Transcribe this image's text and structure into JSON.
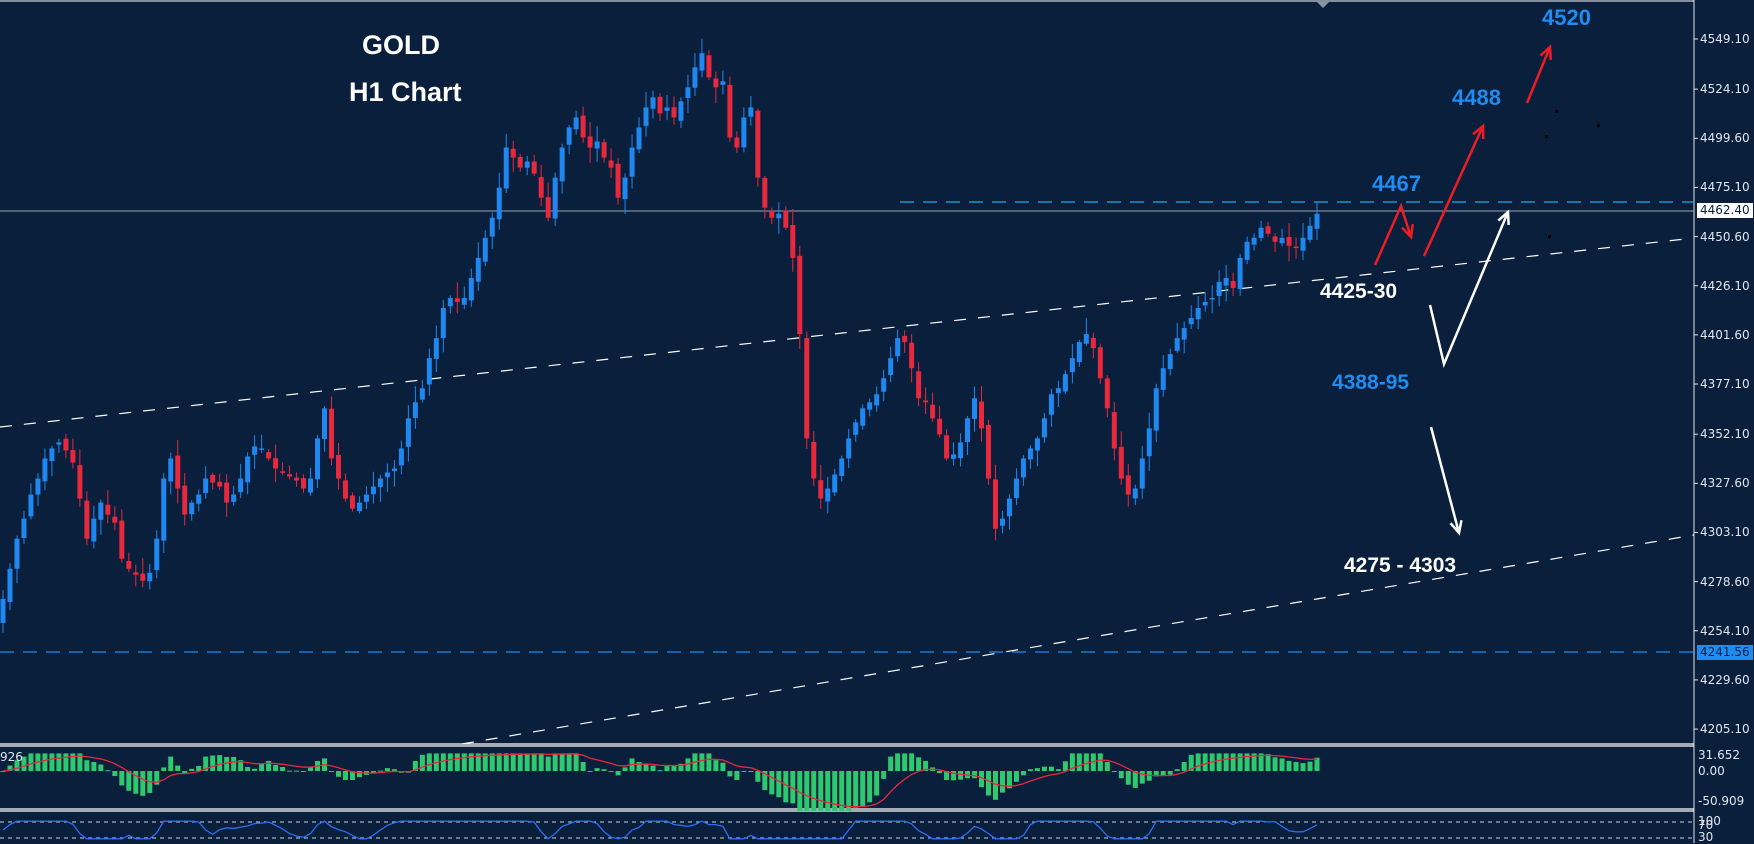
{
  "title": {
    "line1": "GOLD",
    "line2": "H1 Chart"
  },
  "colors": {
    "background": "#0a1f3c",
    "bull": "#1e88f0",
    "bear": "#e8283c",
    "macd_hist": "#2ec86e",
    "macd_signal": "#e8283c",
    "rsi_line": "#2a6ef0",
    "resistance_line": "#1eaaf0",
    "support_line": "#1e8cf0",
    "trendline": "#ffffff",
    "current_price_line": "#9aa4b0"
  },
  "price_axis": {
    "ticks": [
      "4549.10",
      "4524.10",
      "4499.60",
      "4475.10",
      "4450.60",
      "4426.10",
      "4401.60",
      "4377.10",
      "4352.10",
      "4327.60",
      "4303.10",
      "4278.60",
      "4254.10",
      "4229.60",
      "4205.10"
    ],
    "current_price_tag": "4462.40",
    "support_tag": "4241.56"
  },
  "macd_axis": {
    "ticks": [
      "31.652",
      "0.00",
      "-50.909"
    ],
    "left_value": "926"
  },
  "rsi_axis": {
    "ticks": [
      "100",
      "70",
      "30"
    ]
  },
  "annotations": {
    "target_4520": "4520",
    "target_4488": "4488",
    "resistance_4467": "4467",
    "support_4425": "4425-30",
    "support_4388": "4388-95",
    "support_4275": "4275 - 4303"
  },
  "chart_data": {
    "type": "candlestick",
    "title": "GOLD H1 Chart",
    "symbol": "GOLD",
    "timeframe": "H1",
    "ylim": [
      4195,
      4560
    ],
    "grid": false,
    "horizontal_levels": [
      {
        "value": 4467,
        "label": "4467",
        "style": "dashed",
        "color": "#1eaaf0"
      },
      {
        "value": 4462.4,
        "label": "4462.40",
        "style": "solid",
        "color": "#9aa4b0"
      },
      {
        "value": 4241.56,
        "label": "4241.56",
        "style": "dashed",
        "color": "#1e8cf0"
      }
    ],
    "trendlines": [
      {
        "name": "upper-channel",
        "from": [
          0,
          4357
        ],
        "to": [
          1694,
          4451
        ]
      },
      {
        "name": "lower-channel",
        "from": [
          462,
          4195
        ],
        "to": [
          1694,
          4299
        ]
      }
    ],
    "scenario_arrows": [
      {
        "color": "red",
        "path": "4430 -> 4467 -> 4450",
        "label": "4467"
      },
      {
        "color": "red",
        "path": "4435 -> 4488",
        "label": "4488"
      },
      {
        "color": "red",
        "path": "4510 -> 4520",
        "label": "4520"
      },
      {
        "color": "white",
        "path": "4420 -> 4390 -> 4462",
        "label": "4388-95"
      },
      {
        "color": "white",
        "path": "4355 -> 4303",
        "label": "4275 - 4303"
      }
    ],
    "closes": [
      4270,
      4285,
      4300,
      4310,
      4322,
      4330,
      4340,
      4345,
      4348,
      4344,
      4338,
      4320,
      4300,
      4310,
      4318,
      4312,
      4308,
      4290,
      4285,
      4282,
      4279,
      4283,
      4300,
      4330,
      4340,
      4325,
      4312,
      4318,
      4322,
      4330,
      4328,
      4326,
      4318,
      4322,
      4330,
      4341,
      4346,
      4345,
      4340,
      4335,
      4333,
      4331,
      4329,
      4325,
      4330,
      4350,
      4365,
      4340,
      4330,
      4320,
      4315,
      4318,
      4322,
      4326,
      4330,
      4333,
      4335,
      4345,
      4360,
      4368,
      4375,
      4390,
      4400,
      4415,
      4420,
      4418,
      4420,
      4430,
      4440,
      4450,
      4460,
      4475,
      4495,
      4490,
      4485,
      4488,
      4482,
      4470,
      4460,
      4480,
      4495,
      4505,
      4510,
      4500,
      4495,
      4498,
      4490,
      4485,
      4470,
      4480,
      4495,
      4505,
      4515,
      4520,
      4512,
      4515,
      4510,
      4518,
      4525,
      4535,
      4542,
      4530,
      4525,
      4528,
      4500,
      4495,
      4510,
      4515,
      4480,
      4465,
      4460,
      4462,
      4455,
      4440,
      4402,
      4350,
      4330,
      4320,
      4325,
      4332,
      4340,
      4350,
      4358,
      4365,
      4368,
      4372,
      4380,
      4390,
      4400,
      4398,
      4385,
      4370,
      4368,
      4360,
      4352,
      4340,
      4342,
      4348,
      4360,
      4370,
      4355,
      4330,
      4305,
      4310,
      4320,
      4330,
      4340,
      4345,
      4350,
      4360,
      4372,
      4375,
      4382,
      4390,
      4398,
      4402,
      4395,
      4380,
      4365,
      4345,
      4330,
      4322,
      4325,
      4340,
      4355,
      4375,
      4385,
      4392,
      4400,
      4405,
      4410,
      4415,
      4418,
      4420,
      4428,
      4430,
      4425,
      4440,
      4448,
      4450,
      4455,
      4452,
      4448,
      4450,
      4446,
      4445,
      4450,
      4456,
      4462
    ]
  }
}
